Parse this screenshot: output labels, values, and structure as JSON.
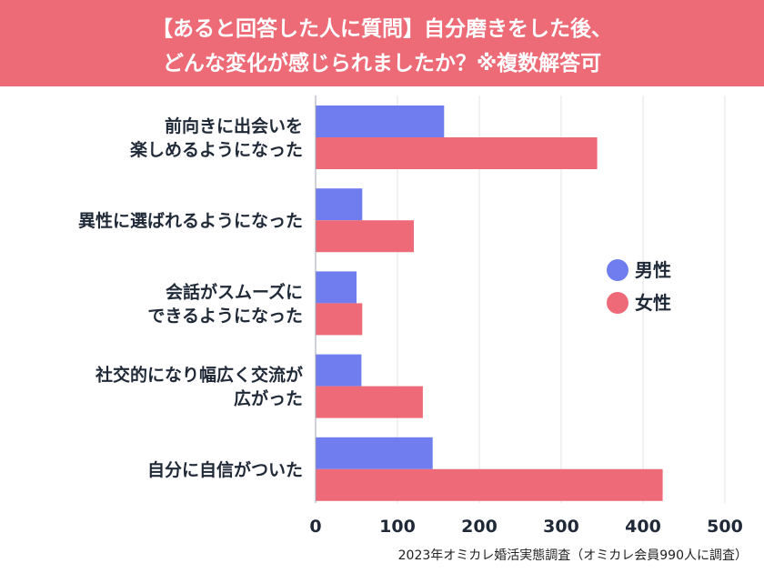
{
  "header": {
    "title_line1": "【あると回答した人に質問】自分磨きをした後、",
    "title_line2": "どんな変化が感じられましたか？※複数解答可"
  },
  "chart_data": {
    "type": "bar",
    "orientation": "horizontal",
    "categories": [
      [
        "前向きに出会いを",
        "楽しめるようになった"
      ],
      [
        "異性に選ばれるようになった"
      ],
      [
        "会話がスムーズに",
        "できるようになった"
      ],
      [
        "社交的になり幅広く交流が",
        "広がった"
      ],
      [
        "自分に自信がついた"
      ]
    ],
    "series": [
      {
        "name": "男性",
        "color": "#6f7def",
        "values": [
          157,
          57,
          50,
          56,
          143
        ]
      },
      {
        "name": "女性",
        "color": "#ef6a78",
        "values": [
          344,
          120,
          57,
          131,
          424
        ]
      }
    ],
    "xlim": [
      0,
      500
    ],
    "ticks": [
      "0",
      "100",
      "200",
      "300",
      "400",
      "500"
    ],
    "grid": true,
    "legend_position": "right"
  },
  "footer": {
    "source": "2023年オミカレ婚活実態調査（オミカレ会員990人に調査）"
  }
}
